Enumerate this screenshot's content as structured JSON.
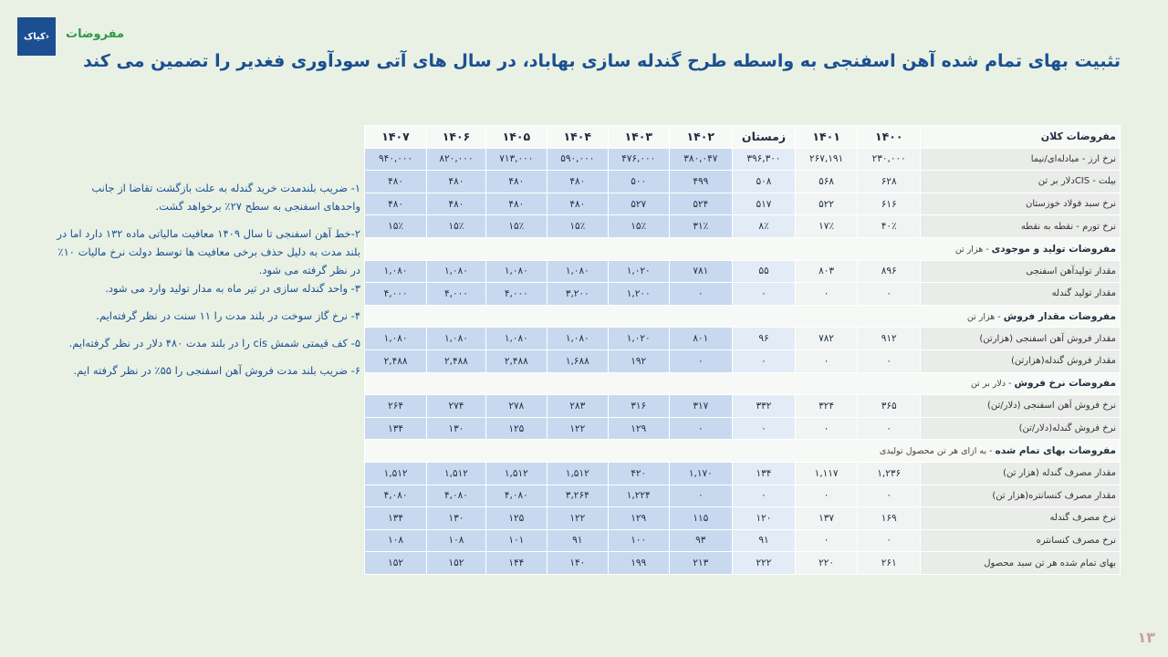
{
  "header": {
    "logo_text": "کیاک›",
    "section": "مفروضات",
    "title": "تثبیت بهای تمام شده آهن اسفنجی به واسطه طرح گندله سازی بهاباد، در سال های آتی سودآوری فغدیر را تضمین می کند"
  },
  "notes": [
    "۱- ضریب بلندمدت خرید گندله به علت بازگشت تقاضا از جانب واحدهای اسفنجی به سطح ۲۷٪ برخواهد گشت.",
    "۲-خط آهن اسفنجی تا سال ۱۴۰۹ معافیت مالیاتی ماده ۱۳۲ دارد اما در بلند مدت به دلیل حذف برخی معافیت ها توسط دولت نرخ مالیات ۱۰٪ در نظر گرفته می شود.",
    "۳- واحد گندله سازی در تیر ماه به مدار تولید وارد می شود.",
    "۴- نرخ گاز سوخت در بلند مدت را ۱۱ سنت در نظر گرفته‌ایم.",
    "۵- کف قیمتی شمش cis را در بلند مدت ۴۸۰ دلار در نظر گرفته‌ایم.",
    "۶- ضریب بلند مدت فروش آهن اسفنجی را ۵۵٪ در نظر گرفته ایم."
  ],
  "table": {
    "corner": "مفروضات کلان",
    "columns": [
      "۱۴۰۰",
      "۱۴۰۱",
      "زمستان",
      "۱۴۰۲",
      "۱۴۰۳",
      "۱۴۰۴",
      "۱۴۰۵",
      "۱۴۰۶",
      "۱۴۰۷"
    ],
    "sections": [
      {
        "title": "",
        "subtitle": "",
        "rows": [
          {
            "label": "نرخ ارز - مبادله‌ای/نیما",
            "values": [
              "۲۳۰,۰۰۰",
              "۲۶۷,۱۹۱",
              "۳۹۶,۳۰۰",
              "۳۸۰,۰۴۷",
              "۴۷۶,۰۰۰",
              "۵۹۰,۰۰۰",
              "۷۱۳,۰۰۰",
              "۸۲۰,۰۰۰",
              "۹۴۰,۰۰۰"
            ]
          },
          {
            "label": "بیلت - CISدلار بر تن",
            "values": [
              "۶۲۸",
              "۵۶۸",
              "۵۰۸",
              "۴۹۹",
              "۵۰۰",
              "۴۸۰",
              "۴۸۰",
              "۴۸۰",
              "۴۸۰"
            ]
          },
          {
            "label": "نرخ سبد فولاد خوزستان",
            "values": [
              "۶۱۶",
              "۵۲۲",
              "۵۱۷",
              "۵۲۴",
              "۵۲۷",
              "۴۸۰",
              "۴۸۰",
              "۴۸۰",
              "۴۸۰"
            ]
          },
          {
            "label": "نرخ تورم - نقطه به نقطه",
            "values": [
              "۴۰٪",
              "۱۷٪",
              "۸٪",
              "۳۱٪",
              "۱۵٪",
              "۱۵٪",
              "۱۵٪",
              "۱۵٪",
              "۱۵٪"
            ]
          }
        ]
      },
      {
        "title": "مفروضات تولید و موجودی",
        "subtitle": " - هزار تن",
        "rows": [
          {
            "label": "مقدار تولیدآهن اسفنجی",
            "values": [
              "۸۹۶",
              "۸۰۳",
              "۵۵",
              "۷۸۱",
              "۱,۰۲۰",
              "۱,۰۸۰",
              "۱,۰۸۰",
              "۱,۰۸۰",
              "۱,۰۸۰"
            ]
          },
          {
            "label": "مقدار تولید گندله",
            "values": [
              "۰",
              "۰",
              "۰",
              "۰",
              "۱,۲۰۰",
              "۳,۲۰۰",
              "۴,۰۰۰",
              "۴,۰۰۰",
              "۴,۰۰۰"
            ]
          }
        ]
      },
      {
        "title": "مفروضات مقدار فروش",
        "subtitle": " - هزار تن",
        "rows": [
          {
            "label": "مقدار فروش آهن اسفنجی (هزارتن)",
            "values": [
              "۹۱۲",
              "۷۸۲",
              "۹۶",
              "۸۰۱",
              "۱,۰۲۰",
              "۱,۰۸۰",
              "۱,۰۸۰",
              "۱,۰۸۰",
              "۱,۰۸۰"
            ]
          },
          {
            "label": "مقدار فروش گندله(هزارتن)",
            "values": [
              "۰",
              "۰",
              "۰",
              "۰",
              "۱۹۲",
              "۱,۶۸۸",
              "۲,۴۸۸",
              "۲,۴۸۸",
              "۲,۴۸۸"
            ]
          }
        ]
      },
      {
        "title": "مفروضات نرخ فروش",
        "subtitle": " - دلار بر تن",
        "rows": [
          {
            "label": "نرخ فروش آهن اسفنجی (دلار/تن)",
            "values": [
              "۳۶۵",
              "۳۲۴",
              "۳۳۲",
              "۳۱۷",
              "۳۱۶",
              "۲۸۳",
              "۲۷۸",
              "۲۷۴",
              "۲۶۴"
            ]
          },
          {
            "label": "نرخ فروش گندله(دلار/تن)",
            "values": [
              "۰",
              "۰",
              "۰",
              "۰",
              "۱۲۹",
              "۱۲۲",
              "۱۲۵",
              "۱۳۰",
              "۱۳۴"
            ]
          }
        ]
      },
      {
        "title": "مفروضات بهای تمام شده",
        "subtitle": " - به ازای هر تن محصول تولیدی",
        "rows": [
          {
            "label": "مقدار مصرف گندله (هزار تن)",
            "values": [
              "۱,۲۳۶",
              "۱,۱۱۷",
              "۱۳۴",
              "۱,۱۷۰",
              "۴۲۰",
              "۱,۵۱۲",
              "۱,۵۱۲",
              "۱,۵۱۲",
              "۱,۵۱۲"
            ]
          },
          {
            "label": "مقدار مصرف کنسانتره(هزار تن)",
            "values": [
              "۰",
              "۰",
              "۰",
              "۰",
              "۱,۲۲۴",
              "۳,۲۶۴",
              "۴,۰۸۰",
              "۴,۰۸۰",
              "۴,۰۸۰"
            ]
          },
          {
            "label": "نرخ مصرف گندله",
            "values": [
              "۱۶۹",
              "۱۳۷",
              "۱۲۰",
              "۱۱۵",
              "۱۲۹",
              "۱۲۲",
              "۱۲۵",
              "۱۳۰",
              "۱۳۴"
            ]
          },
          {
            "label": "نرخ مصرف کنسانتره",
            "values": [
              "۰",
              "۰",
              "۹۱",
              "۹۳",
              "۱۰۰",
              "۹۱",
              "۱۰۱",
              "۱۰۸",
              "۱۰۸"
            ]
          },
          {
            "label": "بهای تمام شده هر تن سبد محصول",
            "values": [
              "۲۶۱",
              "۲۲۰",
              "۲۲۲",
              "۲۱۳",
              "۱۹۹",
              "۱۴۰",
              "۱۴۴",
              "۱۵۲",
              "۱۵۲"
            ]
          }
        ]
      }
    ]
  },
  "page_number": "۱۳",
  "colors": {
    "background": "#e9f1e4",
    "title": "#1b4f92",
    "section_label": "#2e9a48",
    "forecast_cell": "#c8d9ef",
    "winter_cell": "#e3ecf6",
    "actual_cell": "#f2f4f3"
  }
}
